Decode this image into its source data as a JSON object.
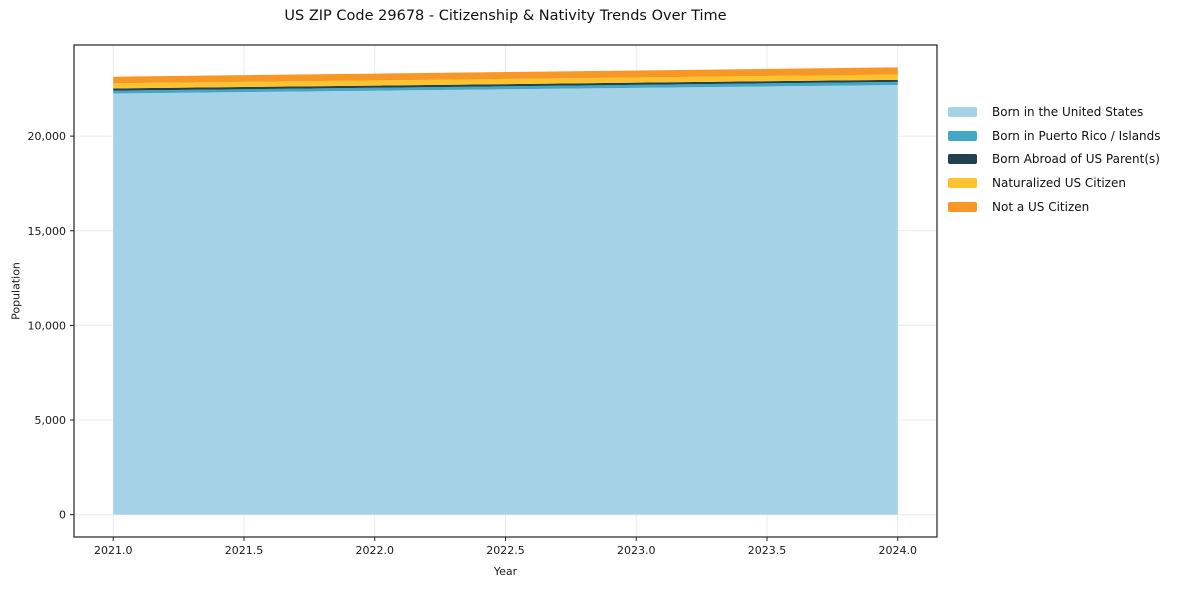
{
  "chart_data": {
    "type": "area",
    "stacked": true,
    "title": "US ZIP Code 29678 - Citizenship & Nativity Trends Over Time",
    "xlabel": "Year",
    "ylabel": "Population",
    "x": [
      2021,
      2022,
      2023,
      2024
    ],
    "series": [
      {
        "name": "Born in the United States",
        "color": "#a6d2e7",
        "values": [
          22250,
          22400,
          22550,
          22700
        ]
      },
      {
        "name": "Born in Puerto Rico / Islands",
        "color": "#42a8c5",
        "values": [
          150,
          155,
          160,
          165
        ]
      },
      {
        "name": "Born Abroad of US Parent(s)",
        "color": "#24414f",
        "values": [
          120,
          115,
          115,
          110
        ]
      },
      {
        "name": "Naturalized US Citizen",
        "color": "#fcc32d",
        "values": [
          270,
          275,
          275,
          280
        ]
      },
      {
        "name": "Not a US Citizen",
        "color": "#f79826",
        "values": [
          350,
          360,
          370,
          380
        ]
      }
    ],
    "xtick_values": [
      2021.0,
      2021.5,
      2022.0,
      2022.5,
      2023.0,
      2023.5,
      2024.0
    ],
    "xtick_labels": [
      "2021.0",
      "2021.5",
      "2022.0",
      "2022.5",
      "2023.0",
      "2023.5",
      "2024.0"
    ],
    "ytick_values": [
      0,
      5000,
      10000,
      15000,
      20000
    ],
    "ytick_labels": [
      "0",
      "5,000",
      "10,000",
      "15,000",
      "20,000"
    ],
    "xlim": [
      2020.85,
      2024.15
    ],
    "ylim": [
      -1180,
      24815
    ],
    "grid": true,
    "grid_color": "#ebebeb",
    "spine_color": "#222222",
    "tick_text_color": "#1a1a1a",
    "legend_position": "outside-right-top"
  }
}
